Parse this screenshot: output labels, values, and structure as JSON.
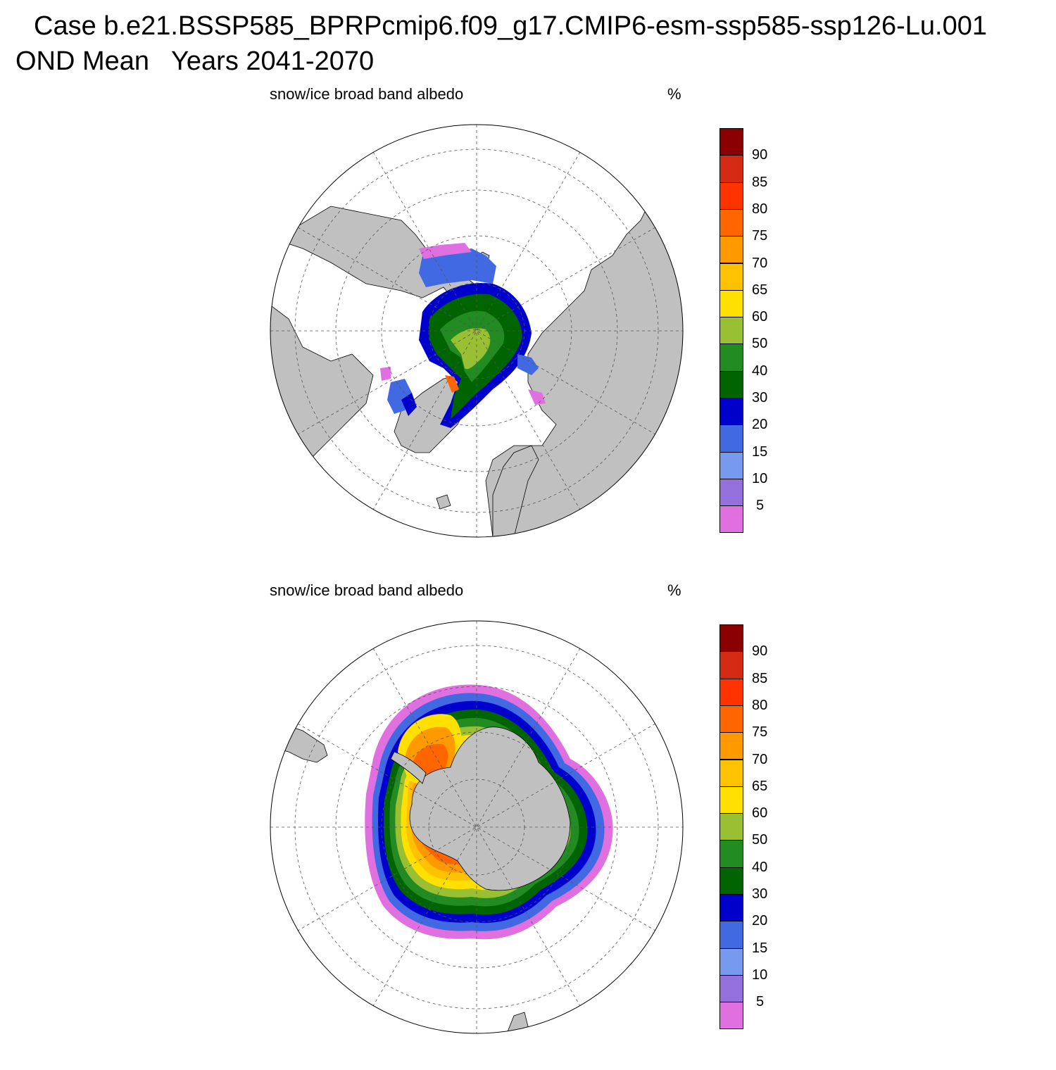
{
  "header": {
    "line1": "Case b.e21.BSSP585_BPRPcmip6.f09_g17.CMIP6-esm-ssp585-ssp126-Lu.001",
    "line2": "OND Mean   Years 2041-2070"
  },
  "panels": [
    {
      "hemisphere": "north",
      "variable": "snow/ice broad band albedo",
      "units": "%"
    },
    {
      "hemisphere": "south",
      "variable": "snow/ice broad band albedo",
      "units": "%"
    }
  ],
  "colorbar": {
    "labels": [
      "90",
      "85",
      "80",
      "75",
      "70",
      "65",
      "60",
      "50",
      "40",
      "30",
      "20",
      "15",
      "10",
      "5"
    ],
    "colors": [
      "#8b0000",
      "#d42a14",
      "#ff3300",
      "#ff6600",
      "#ff9900",
      "#ffc200",
      "#ffe000",
      "#99bf33",
      "#228b22",
      "#006400",
      "#0000cd",
      "#4169e1",
      "#7799ee",
      "#9370db",
      "#e070e0"
    ]
  },
  "map_colors": {
    "land": "#c0c0c0",
    "ocean": "#ffffff",
    "coast": "#000000",
    "grid": "#555555"
  },
  "chart_data": {
    "type": "heatmap",
    "title": "snow/ice broad band albedo",
    "units": "%",
    "levels": [
      5,
      10,
      15,
      20,
      30,
      40,
      50,
      60,
      65,
      70,
      75,
      80,
      85,
      90
    ],
    "projection": "polar stereographic",
    "panels": [
      "Northern Hemisphere",
      "Southern Hemisphere"
    ],
    "season": "OND",
    "years": "2041-2070"
  }
}
